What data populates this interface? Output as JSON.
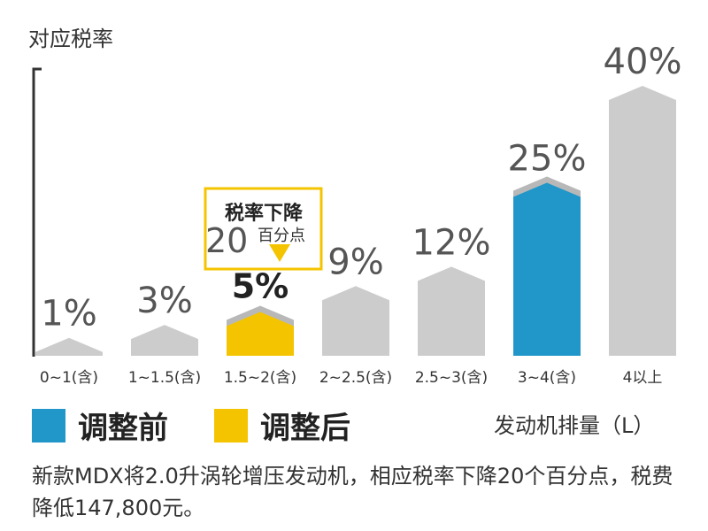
{
  "chart_data": {
    "type": "bar",
    "ylabel": "对应税率",
    "categories": [
      "0~1(含)",
      "1~1.5(含)",
      "1.5~2(含)",
      "2~2.5(含)",
      "2.5~3(含)",
      "3~4(含)",
      "4以上"
    ],
    "series": [
      {
        "name": "调整前",
        "color": "#2196c8"
      },
      {
        "name": "调整后",
        "color": "#f5c400"
      }
    ],
    "values": [
      1,
      3,
      5,
      9,
      12,
      25,
      40
    ],
    "value_labels": [
      "1%",
      "3%",
      "5%",
      "9%",
      "12%",
      "25%",
      "40%"
    ],
    "highlight": {
      "adjusted_index": 2,
      "before_index": 5
    },
    "default_color": "#cccccc",
    "ylim": [
      0,
      40
    ],
    "grid": false,
    "legend_position": "bottom-left",
    "annotation": {
      "title": "税率下降",
      "big_number": "20",
      "small_text": "百分点"
    }
  },
  "x_unit_label": "发动机排量（L）",
  "caption": "新款MDX将2.0升涡轮增压发动机，相应税率下降20个百分点，税费降低147,800元。"
}
